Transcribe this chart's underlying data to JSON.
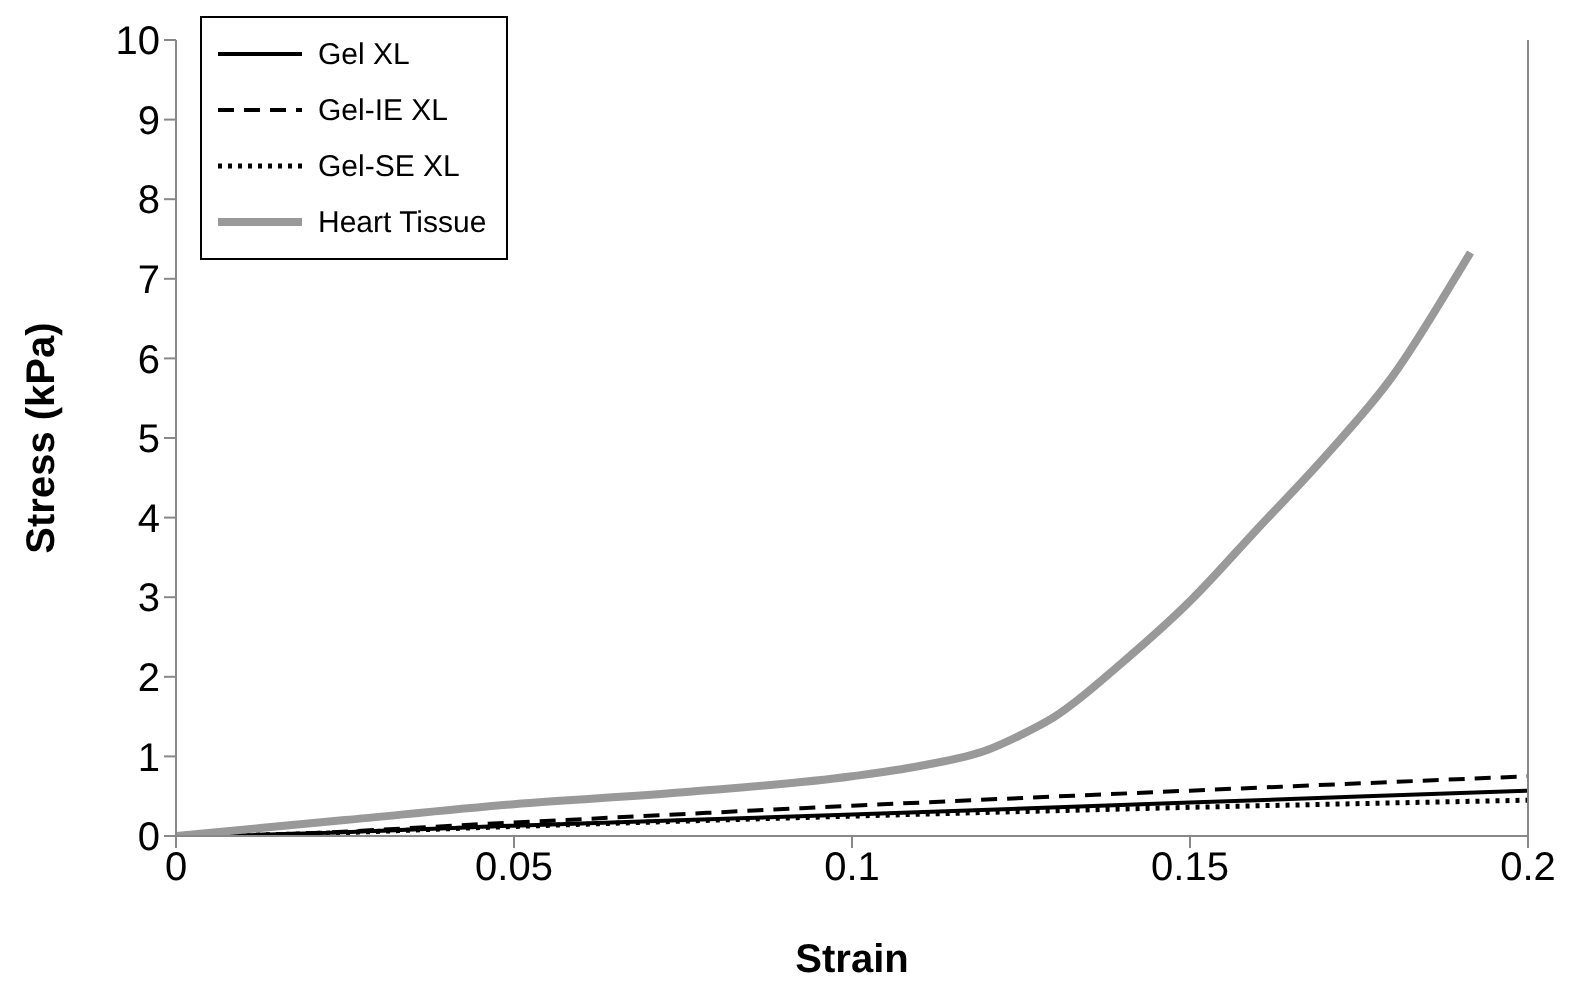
{
  "chart_data": {
    "type": "line",
    "xlabel": "Strain",
    "ylabel": "Stress (kPa)",
    "xlim": [
      0,
      0.2
    ],
    "xticks": [
      0,
      0.05,
      0.1,
      0.15,
      0.2
    ],
    "ylim": [
      0,
      10
    ],
    "yticks": [
      0,
      1,
      2,
      3,
      4,
      5,
      6,
      7,
      8,
      9,
      10
    ],
    "grid": false,
    "legend": "top left",
    "marker": "none",
    "series": [
      {
        "name": "Gel XL",
        "color": "#000000",
        "line_style": "solid",
        "x": [
          0,
          0.01,
          0.05,
          0.1,
          0.15,
          0.2
        ],
        "values": [
          0,
          0.01,
          0.13,
          0.27,
          0.42,
          0.57
        ]
      },
      {
        "name": "Gel-IE XL",
        "color": "#000000",
        "line_style": "dashed",
        "x": [
          0,
          0.01,
          0.05,
          0.1,
          0.15,
          0.2
        ],
        "values": [
          0,
          0.01,
          0.17,
          0.38,
          0.57,
          0.75
        ]
      },
      {
        "name": "Gel-SE XL",
        "color": "#000000",
        "line_style": "dotted",
        "x": [
          0,
          0.01,
          0.05,
          0.1,
          0.15,
          0.2
        ],
        "values": [
          0,
          0.01,
          0.12,
          0.25,
          0.36,
          0.45
        ]
      },
      {
        "name": "Heart Tissue",
        "color": "#999999",
        "line_style": "solid",
        "x": [
          0,
          0.025,
          0.05,
          0.075,
          0.1,
          0.11,
          0.12,
          0.125,
          0.13,
          0.14,
          0.15,
          0.16,
          0.17,
          0.18,
          0.19,
          0.1915
        ],
        "values": [
          0,
          0.2,
          0.4,
          0.55,
          0.75,
          0.88,
          1.08,
          1.27,
          1.5,
          2.18,
          2.95,
          3.86,
          4.77,
          5.78,
          7.12,
          7.33
        ]
      }
    ]
  }
}
